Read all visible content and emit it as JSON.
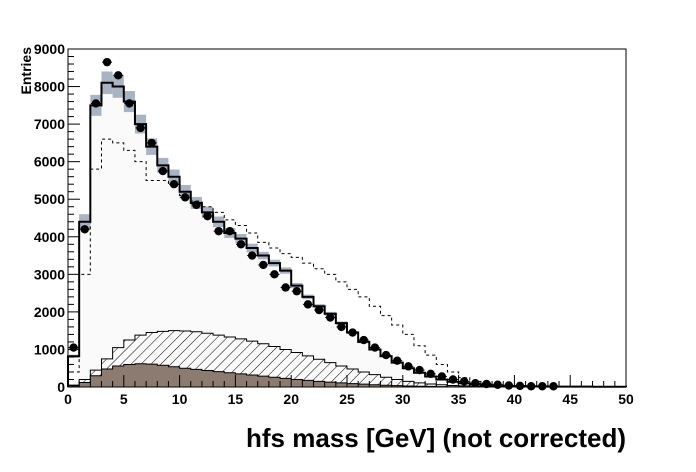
{
  "chart_data": {
    "type": "histogram",
    "xlabel": "hfs mass [GeV] (not corrected)",
    "ylabel": "Entries",
    "xlim": [
      0,
      50
    ],
    "ylim": [
      0,
      9000
    ],
    "x_ticks": [
      "0",
      "5",
      "10",
      "15",
      "20",
      "25",
      "30",
      "35",
      "40",
      "45",
      "50"
    ],
    "y_ticks": [
      "0",
      "1000",
      "2000",
      "3000",
      "4000",
      "5000",
      "6000",
      "7000",
      "8000",
      "9000"
    ],
    "bin_edges_start": 0,
    "bin_width": 1,
    "series": [
      {
        "role": "mc-total-solid",
        "values": [
          820,
          4400,
          7500,
          8100,
          8000,
          7600,
          7000,
          6400,
          5900,
          5600,
          5200,
          4900,
          4650,
          4400,
          4100,
          3950,
          3700,
          3500,
          3300,
          3100,
          2700,
          2400,
          2150,
          1950,
          1700,
          1450,
          1200,
          1000,
          820,
          650,
          500,
          380,
          280,
          200,
          140,
          100,
          70,
          50,
          40,
          30,
          25,
          20,
          15,
          10,
          10,
          10,
          10,
          5,
          5,
          5
        ]
      },
      {
        "role": "mc-uncertainty-band",
        "values": [
          820,
          4400,
          7500,
          8100,
          8000,
          7600,
          7000,
          6400,
          5900,
          5600,
          5200,
          4900,
          4650,
          4400,
          4100,
          3950,
          3700,
          3500,
          3300,
          3100,
          2700,
          2400,
          2150,
          1950,
          1700,
          1450,
          1200,
          1000,
          820,
          650,
          500,
          380,
          280,
          200,
          140,
          100,
          70,
          50,
          40,
          30,
          25,
          20,
          15,
          10,
          10,
          10,
          10,
          5,
          5,
          5
        ],
        "errors": [
          40,
          200,
          280,
          300,
          300,
          280,
          250,
          220,
          200,
          190,
          180,
          160,
          150,
          140,
          130,
          125,
          115,
          100,
          90,
          85,
          70,
          60,
          55,
          50,
          45,
          40,
          35,
          30,
          25,
          20,
          15,
          12,
          10,
          8,
          6,
          5,
          4,
          3,
          3,
          2,
          2,
          2,
          1,
          1,
          1,
          1,
          1,
          1,
          1,
          1
        ]
      },
      {
        "role": "mc-dashed",
        "values": [
          400,
          3000,
          5800,
          6600,
          6500,
          6300,
          6000,
          5500,
          5500,
          5400,
          5100,
          4950,
          4800,
          4650,
          4450,
          4300,
          4100,
          3850,
          3700,
          3550,
          3450,
          3300,
          3150,
          3000,
          2800,
          2600,
          2400,
          2150,
          1900,
          1650,
          1400,
          1100,
          850,
          600,
          400,
          250,
          150,
          100,
          60,
          40,
          30,
          20,
          15,
          10,
          10,
          5,
          5,
          5,
          5,
          5
        ]
      },
      {
        "role": "hatched-component",
        "values": [
          50,
          200,
          450,
          750,
          1050,
          1250,
          1380,
          1450,
          1480,
          1500,
          1490,
          1470,
          1430,
          1380,
          1330,
          1280,
          1220,
          1150,
          1080,
          1000,
          920,
          830,
          740,
          650,
          560,
          480,
          400,
          330,
          260,
          200,
          150,
          110,
          80,
          60,
          40,
          30,
          20,
          15,
          10,
          5,
          5,
          5,
          0,
          0,
          0,
          0,
          0,
          0,
          0,
          0
        ]
      },
      {
        "role": "solid-brown-component",
        "values": [
          30,
          120,
          300,
          480,
          560,
          600,
          620,
          610,
          580,
          540,
          500,
          470,
          440,
          410,
          380,
          350,
          320,
          290,
          260,
          230,
          200,
          175,
          150,
          130,
          110,
          90,
          75,
          60,
          45,
          35,
          25,
          20,
          15,
          10,
          8,
          5,
          3,
          2,
          1,
          0,
          0,
          0,
          0,
          0,
          0,
          0,
          0,
          0,
          0,
          0
        ]
      },
      {
        "role": "data-points",
        "x": [
          0.5,
          1.5,
          2.5,
          3.5,
          4.5,
          5.5,
          6.5,
          7.5,
          8.5,
          9.5,
          10.5,
          11.5,
          12.5,
          13.5,
          14.5,
          15.5,
          16.5,
          17.5,
          18.5,
          19.5,
          20.5,
          21.5,
          22.5,
          23.5,
          24.5,
          25.5,
          26.5,
          27.5,
          28.5,
          29.5,
          30.5,
          31.5,
          32.5,
          33.5,
          34.5,
          35.5,
          36.5,
          37.5,
          38.5,
          39.5,
          40.5,
          41.5,
          42.5,
          43.5
        ],
        "y": [
          1050,
          4200,
          7550,
          8650,
          8300,
          7550,
          6900,
          6500,
          5750,
          5400,
          5050,
          4850,
          4550,
          4150,
          4150,
          3800,
          3500,
          3250,
          3000,
          2650,
          2550,
          2200,
          2050,
          1850,
          1600,
          1450,
          1250,
          1050,
          850,
          700,
          550,
          450,
          350,
          280,
          200,
          150,
          100,
          80,
          60,
          40,
          30,
          20,
          20,
          20
        ]
      }
    ],
    "colors": {
      "band": "#a8b4c4",
      "hatch": "#000000",
      "brown": "#8c7b70",
      "fill_light": "#fafafa",
      "line": "#000000",
      "marker": "#000000"
    }
  }
}
